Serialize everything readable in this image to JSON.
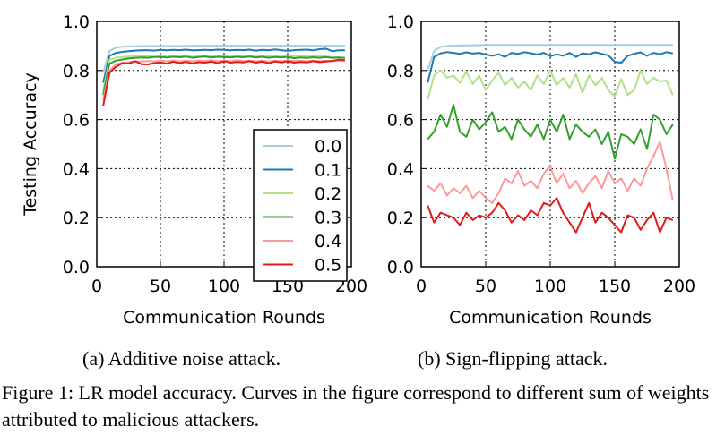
{
  "figure": {
    "caption": "Figure 1: LR model accuracy. Curves in the figure correspond to different sum of weights attributed to malicious attackers."
  },
  "chart_data": [
    {
      "type": "line",
      "subcaption": "(a) Additive noise attack.",
      "xlabel": "Communication Rounds",
      "ylabel": "Testing Accuracy",
      "xlim": [
        0,
        200
      ],
      "ylim": [
        0.0,
        1.0
      ],
      "xticks": [
        "0",
        "50",
        "100",
        "150",
        "200"
      ],
      "yticks": [
        "0.0",
        "0.2",
        "0.4",
        "0.6",
        "0.8",
        "1.0"
      ],
      "grid": true,
      "legend_position": "lower-right",
      "series": [
        {
          "name": "0.0",
          "color": "#a6cee3",
          "x": [
            5,
            10,
            15,
            20,
            30,
            40,
            50,
            60,
            70,
            80,
            90,
            100,
            110,
            120,
            130,
            140,
            150,
            160,
            170,
            180,
            190,
            195
          ],
          "y": [
            0.79,
            0.88,
            0.893,
            0.897,
            0.899,
            0.9,
            0.9,
            0.9,
            0.9,
            0.901,
            0.901,
            0.901,
            0.901,
            0.901,
            0.901,
            0.901,
            0.901,
            0.901,
            0.901,
            0.901,
            0.901,
            0.901
          ]
        },
        {
          "name": "0.1",
          "color": "#1f78b4",
          "x": [
            5,
            10,
            15,
            20,
            25,
            30,
            35,
            40,
            45,
            50,
            55,
            60,
            65,
            70,
            75,
            80,
            85,
            90,
            95,
            100,
            105,
            110,
            115,
            120,
            125,
            130,
            135,
            140,
            145,
            150,
            155,
            160,
            165,
            170,
            175,
            180,
            185,
            190,
            195
          ],
          "y": [
            0.75,
            0.86,
            0.872,
            0.876,
            0.879,
            0.881,
            0.882,
            0.883,
            0.881,
            0.884,
            0.882,
            0.884,
            0.883,
            0.885,
            0.882,
            0.883,
            0.884,
            0.883,
            0.885,
            0.884,
            0.882,
            0.884,
            0.883,
            0.885,
            0.881,
            0.884,
            0.882,
            0.886,
            0.883,
            0.88,
            0.883,
            0.884,
            0.885,
            0.882,
            0.887,
            0.889,
            0.879,
            0.882,
            0.882
          ]
        },
        {
          "name": "0.2",
          "color": "#b2df8a",
          "x": [
            5,
            10,
            15,
            20,
            25,
            30,
            35,
            40,
            45,
            50,
            55,
            60,
            65,
            70,
            75,
            80,
            85,
            90,
            95,
            100,
            105,
            110,
            115,
            120,
            125,
            130,
            135,
            140,
            145,
            150,
            155,
            160,
            165,
            170,
            175,
            180,
            185,
            190,
            195
          ],
          "y": [
            0.72,
            0.843,
            0.852,
            0.855,
            0.857,
            0.858,
            0.859,
            0.86,
            0.856,
            0.86,
            0.858,
            0.859,
            0.857,
            0.86,
            0.856,
            0.858,
            0.86,
            0.857,
            0.861,
            0.858,
            0.857,
            0.859,
            0.858,
            0.86,
            0.857,
            0.859,
            0.858,
            0.861,
            0.857,
            0.86,
            0.858,
            0.86,
            0.857,
            0.858,
            0.86,
            0.857,
            0.855,
            0.853,
            0.852
          ]
        },
        {
          "name": "0.3",
          "color": "#33a02c",
          "x": [
            5,
            10,
            15,
            20,
            25,
            30,
            35,
            40,
            45,
            50,
            55,
            60,
            65,
            70,
            75,
            80,
            85,
            90,
            95,
            100,
            105,
            110,
            115,
            120,
            125,
            130,
            135,
            140,
            145,
            150,
            155,
            160,
            165,
            170,
            175,
            180,
            185,
            190,
            195
          ],
          "y": [
            0.7,
            0.828,
            0.84,
            0.845,
            0.849,
            0.851,
            0.853,
            0.852,
            0.855,
            0.855,
            0.853,
            0.856,
            0.854,
            0.857,
            0.852,
            0.855,
            0.857,
            0.853,
            0.856,
            0.855,
            0.853,
            0.856,
            0.854,
            0.857,
            0.853,
            0.856,
            0.852,
            0.855,
            0.853,
            0.856,
            0.85,
            0.853,
            0.851,
            0.854,
            0.852,
            0.855,
            0.851,
            0.853,
            0.851
          ]
        },
        {
          "name": "0.4",
          "color": "#fb9a99",
          "x": [
            5,
            10,
            15,
            20,
            25,
            30,
            35,
            40,
            45,
            50,
            55,
            60,
            65,
            70,
            75,
            80,
            85,
            90,
            95,
            100,
            105,
            110,
            115,
            120,
            125,
            130,
            135,
            140,
            145,
            150,
            155,
            160,
            165,
            170,
            175,
            180,
            185,
            190,
            195
          ],
          "y": [
            0.68,
            0.8,
            0.825,
            0.832,
            0.834,
            0.838,
            0.836,
            0.839,
            0.837,
            0.84,
            0.838,
            0.841,
            0.837,
            0.84,
            0.838,
            0.841,
            0.839,
            0.842,
            0.838,
            0.84,
            0.838,
            0.842,
            0.839,
            0.84,
            0.838,
            0.841,
            0.837,
            0.84,
            0.838,
            0.842,
            0.839,
            0.84,
            0.838,
            0.841,
            0.839,
            0.84,
            0.838,
            0.84,
            0.838
          ]
        },
        {
          "name": "0.5",
          "color": "#e31a1c",
          "x": [
            5,
            10,
            15,
            20,
            25,
            30,
            35,
            40,
            45,
            50,
            55,
            60,
            65,
            70,
            75,
            80,
            85,
            90,
            95,
            100,
            105,
            110,
            115,
            120,
            125,
            130,
            135,
            140,
            145,
            150,
            155,
            160,
            165,
            170,
            175,
            180,
            185,
            190,
            195
          ],
          "y": [
            0.655,
            0.79,
            0.815,
            0.83,
            0.828,
            0.838,
            0.826,
            0.825,
            0.83,
            0.833,
            0.828,
            0.836,
            0.83,
            0.835,
            0.829,
            0.834,
            0.832,
            0.836,
            0.83,
            0.838,
            0.832,
            0.835,
            0.833,
            0.838,
            0.832,
            0.836,
            0.83,
            0.837,
            0.833,
            0.838,
            0.832,
            0.835,
            0.833,
            0.838,
            0.834,
            0.837,
            0.839,
            0.844,
            0.842
          ]
        }
      ]
    },
    {
      "type": "line",
      "subcaption": "(b) Sign-flipping attack.",
      "xlabel": "Communication Rounds",
      "ylabel": "",
      "xlim": [
        0,
        200
      ],
      "ylim": [
        0.0,
        1.0
      ],
      "xticks": [
        "0",
        "50",
        "100",
        "150",
        "200"
      ],
      "yticks": [
        "0.0",
        "0.2",
        "0.4",
        "0.6",
        "0.8",
        "1.0"
      ],
      "grid": true,
      "series": [
        {
          "name": "0.0",
          "color": "#a6cee3",
          "x": [
            5,
            10,
            15,
            20,
            30,
            40,
            50,
            60,
            70,
            80,
            90,
            100,
            110,
            120,
            130,
            140,
            150,
            160,
            170,
            180,
            190,
            195
          ],
          "y": [
            0.8,
            0.88,
            0.896,
            0.9,
            0.902,
            0.903,
            0.904,
            0.904,
            0.904,
            0.904,
            0.904,
            0.904,
            0.904,
            0.904,
            0.904,
            0.904,
            0.904,
            0.904,
            0.904,
            0.904,
            0.904,
            0.904
          ]
        },
        {
          "name": "0.1",
          "color": "#1f78b4",
          "x": [
            5,
            10,
            15,
            20,
            25,
            30,
            35,
            40,
            45,
            50,
            55,
            60,
            65,
            70,
            75,
            80,
            85,
            90,
            95,
            100,
            105,
            110,
            115,
            120,
            125,
            130,
            135,
            140,
            145,
            150,
            155,
            160,
            165,
            170,
            175,
            180,
            185,
            190,
            195
          ],
          "y": [
            0.75,
            0.855,
            0.87,
            0.875,
            0.872,
            0.868,
            0.874,
            0.869,
            0.872,
            0.865,
            0.86,
            0.866,
            0.855,
            0.872,
            0.868,
            0.875,
            0.87,
            0.865,
            0.872,
            0.858,
            0.866,
            0.86,
            0.872,
            0.855,
            0.87,
            0.866,
            0.874,
            0.868,
            0.862,
            0.835,
            0.832,
            0.86,
            0.868,
            0.874,
            0.86,
            0.872,
            0.866,
            0.875,
            0.87
          ]
        },
        {
          "name": "0.2",
          "color": "#b2df8a",
          "x": [
            5,
            10,
            15,
            20,
            25,
            30,
            35,
            40,
            45,
            50,
            55,
            60,
            65,
            70,
            75,
            80,
            85,
            90,
            95,
            100,
            105,
            110,
            115,
            120,
            125,
            130,
            135,
            140,
            145,
            150,
            155,
            160,
            165,
            170,
            175,
            180,
            185,
            190,
            195
          ],
          "y": [
            0.68,
            0.78,
            0.8,
            0.77,
            0.78,
            0.75,
            0.795,
            0.745,
            0.78,
            0.72,
            0.76,
            0.79,
            0.74,
            0.77,
            0.73,
            0.755,
            0.72,
            0.78,
            0.745,
            0.8,
            0.74,
            0.77,
            0.73,
            0.785,
            0.71,
            0.78,
            0.74,
            0.77,
            0.72,
            0.695,
            0.765,
            0.7,
            0.72,
            0.8,
            0.745,
            0.77,
            0.755,
            0.76,
            0.7
          ]
        },
        {
          "name": "0.3",
          "color": "#33a02c",
          "x": [
            5,
            10,
            15,
            20,
            25,
            30,
            35,
            40,
            45,
            50,
            55,
            60,
            65,
            70,
            75,
            80,
            85,
            90,
            95,
            100,
            105,
            110,
            115,
            120,
            125,
            130,
            135,
            140,
            145,
            150,
            155,
            160,
            165,
            170,
            175,
            180,
            185,
            190,
            195
          ],
          "y": [
            0.52,
            0.55,
            0.62,
            0.57,
            0.66,
            0.55,
            0.53,
            0.6,
            0.56,
            0.59,
            0.63,
            0.55,
            0.57,
            0.52,
            0.6,
            0.56,
            0.53,
            0.58,
            0.52,
            0.6,
            0.55,
            0.62,
            0.52,
            0.58,
            0.55,
            0.53,
            0.56,
            0.5,
            0.55,
            0.44,
            0.54,
            0.53,
            0.5,
            0.56,
            0.48,
            0.62,
            0.6,
            0.54,
            0.58
          ]
        },
        {
          "name": "0.4",
          "color": "#fb9a99",
          "x": [
            5,
            10,
            15,
            20,
            25,
            30,
            35,
            40,
            45,
            50,
            55,
            60,
            65,
            70,
            75,
            80,
            85,
            90,
            95,
            100,
            105,
            110,
            115,
            120,
            125,
            130,
            135,
            140,
            145,
            150,
            155,
            160,
            165,
            170,
            175,
            180,
            185,
            190,
            195
          ],
          "y": [
            0.33,
            0.31,
            0.34,
            0.29,
            0.32,
            0.3,
            0.33,
            0.28,
            0.31,
            0.28,
            0.26,
            0.3,
            0.36,
            0.34,
            0.39,
            0.33,
            0.35,
            0.32,
            0.38,
            0.41,
            0.34,
            0.38,
            0.32,
            0.35,
            0.3,
            0.34,
            0.37,
            0.32,
            0.39,
            0.34,
            0.36,
            0.31,
            0.36,
            0.33,
            0.4,
            0.45,
            0.51,
            0.4,
            0.27
          ]
        },
        {
          "name": "0.5",
          "color": "#e31a1c",
          "x": [
            5,
            10,
            15,
            20,
            25,
            30,
            35,
            40,
            45,
            50,
            55,
            60,
            65,
            70,
            75,
            80,
            85,
            90,
            95,
            100,
            105,
            110,
            115,
            120,
            125,
            130,
            135,
            140,
            145,
            150,
            155,
            160,
            165,
            170,
            175,
            180,
            185,
            190,
            195
          ],
          "y": [
            0.25,
            0.18,
            0.22,
            0.21,
            0.2,
            0.17,
            0.22,
            0.19,
            0.21,
            0.2,
            0.22,
            0.26,
            0.23,
            0.18,
            0.21,
            0.19,
            0.23,
            0.21,
            0.26,
            0.25,
            0.28,
            0.22,
            0.18,
            0.14,
            0.2,
            0.26,
            0.18,
            0.22,
            0.2,
            0.17,
            0.14,
            0.21,
            0.2,
            0.15,
            0.19,
            0.22,
            0.14,
            0.2,
            0.19
          ]
        }
      ]
    }
  ]
}
